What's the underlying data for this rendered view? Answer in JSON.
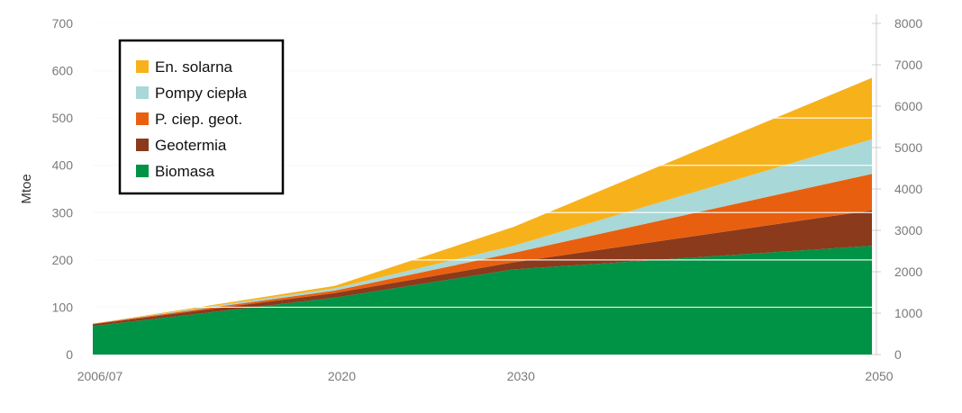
{
  "chart_data": {
    "type": "area",
    "stacked": true,
    "x": [
      "2006/07",
      "2020",
      "2030",
      "2050"
    ],
    "x_positions": [
      2006.5,
      2020,
      2030,
      2050
    ],
    "y_left": {
      "label": "Mtoe",
      "ylim": [
        0,
        700
      ],
      "ticks": [
        0,
        100,
        200,
        300,
        400,
        500,
        600,
        700
      ]
    },
    "y_right": {
      "label": "",
      "ylim": [
        0,
        8000
      ],
      "ticks": [
        0,
        1000,
        2000,
        3000,
        4000,
        5000,
        6000,
        7000,
        8000
      ]
    },
    "series": [
      {
        "name": "Biomasa",
        "color": "#009245",
        "values": [
          60,
          120,
          180,
          230
        ]
      },
      {
        "name": "Geotermia",
        "color": "#8B3A1C",
        "values": [
          4,
          10,
          15,
          75
        ]
      },
      {
        "name": "P. ciep. geot.",
        "color": "#E8600F",
        "values": [
          1,
          5,
          20,
          77
        ]
      },
      {
        "name": "Pompy ciepła",
        "color": "#A8D8D8",
        "values": [
          0,
          5,
          15,
          73
        ]
      },
      {
        "name": "En. solarna",
        "color": "#F7B21B",
        "values": [
          0,
          5,
          40,
          130
        ]
      }
    ],
    "legend_order": [
      "En. solarna",
      "Pompy ciepła",
      "P. ciep. geot.",
      "Geotermia",
      "Biomasa"
    ],
    "legend_position": "top-left",
    "grid": true
  }
}
